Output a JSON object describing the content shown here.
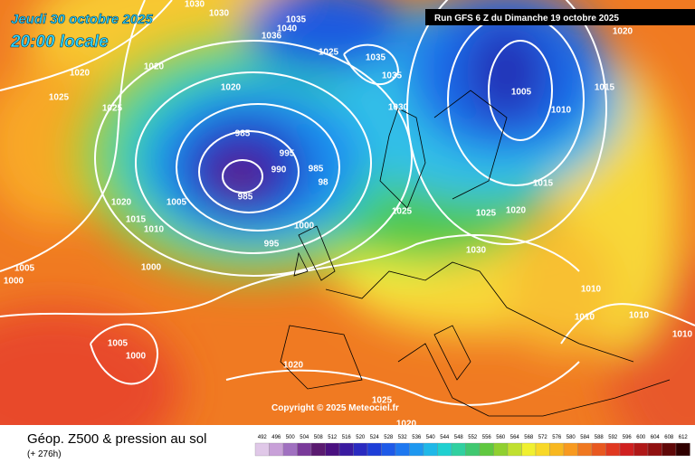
{
  "header": {
    "date": "Jeudi 30 octobre 2025",
    "time": "20:00 locale",
    "run": "Run GFS 6 Z du Dimanche 19 octobre 2025"
  },
  "copyright": "Copyright © 2025 Meteociel.fr",
  "footer": {
    "title": "Géop. Z500 & pression au sol",
    "lead": "(+ 276h)"
  },
  "scale": {
    "values": [
      492,
      496,
      500,
      504,
      508,
      512,
      516,
      520,
      524,
      528,
      532,
      536,
      540,
      544,
      548,
      552,
      556,
      560,
      564,
      568,
      572,
      576,
      580,
      584,
      588,
      592,
      596,
      600,
      604,
      608,
      612
    ],
    "colors": [
      "#e0c8e8",
      "#c8a0d8",
      "#a070c0",
      "#7a3a9a",
      "#5a1a70",
      "#4a1080",
      "#3a1aa0",
      "#2a2ac0",
      "#1e3ed8",
      "#1e5ae8",
      "#1e78f0",
      "#1e98f0",
      "#20b8e8",
      "#20d0d0",
      "#30d0a0",
      "#40c870",
      "#60c840",
      "#90d030",
      "#c0e030",
      "#f0f030",
      "#f8d828",
      "#f8b820",
      "#f89a20",
      "#f07820",
      "#e85820",
      "#e03820",
      "#d02020",
      "#b01818",
      "#901010",
      "#600808",
      "#300000"
    ]
  },
  "isobar_labels": [
    1030,
    1030,
    1035,
    1040,
    1036,
    1025,
    1035,
    1035,
    1020,
    1020,
    1025,
    1025,
    1020,
    1030,
    1005,
    1015,
    1010,
    1020,
    985,
    995,
    990,
    985,
    985,
    98,
    1005,
    1020,
    1015,
    1010,
    1000,
    995,
    1025,
    1025,
    1020,
    1015,
    1030,
    1000,
    1005,
    1000,
    1010,
    1010,
    1010,
    1010,
    1005,
    1000,
    1020,
    1025,
    1020
  ]
}
